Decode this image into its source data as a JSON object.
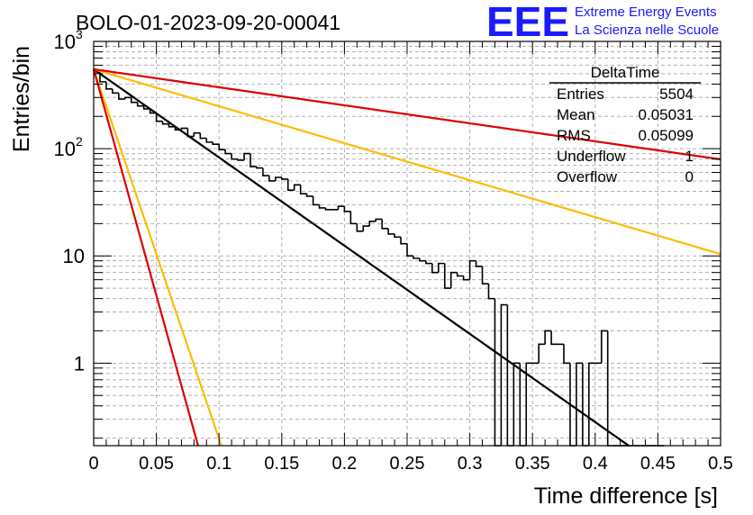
{
  "title": "BOLO-01-2023-09-20-00041",
  "logo": {
    "mark": "EEE",
    "line1": "Extreme Energy Events",
    "line2": "La Scienza nelle Scuole",
    "color": "#1a1aff"
  },
  "stats": {
    "name": "DeltaTime",
    "rows": [
      {
        "label": "Entries",
        "value": "5504"
      },
      {
        "label": "Mean",
        "value": "0.05031"
      },
      {
        "label": "RMS",
        "value": "0.05099"
      },
      {
        "label": "Underflow",
        "value": "1"
      },
      {
        "label": "Overflow",
        "value": "0"
      }
    ]
  },
  "chart_data": {
    "type": "histogram",
    "xlabel": "Time difference [s]",
    "ylabel": "Entries/bin",
    "xlim": [
      0,
      0.5
    ],
    "ylim": [
      0.17,
      1000
    ],
    "y_scale": "log",
    "grid": true,
    "x_ticks": [
      "0",
      "0.05",
      "0.1",
      "0.15",
      "0.2",
      "0.25",
      "0.3",
      "0.35",
      "0.4",
      "0.45",
      "0.5"
    ],
    "y_ticks": [
      {
        "value": 1,
        "label": "1"
      },
      {
        "value": 10,
        "label": "10"
      },
      {
        "value": 100,
        "label": "10",
        "exp": "2"
      },
      {
        "value": 1000,
        "label": "10",
        "exp": "3"
      }
    ],
    "bin_width": 0.005,
    "bin_values": [
      520,
      420,
      360,
      330,
      290,
      300,
      270,
      250,
      235,
      215,
      180,
      170,
      160,
      150,
      155,
      130,
      140,
      125,
      115,
      110,
      98,
      90,
      80,
      78,
      90,
      68,
      66,
      56,
      50,
      54,
      52,
      41,
      46,
      38,
      36,
      30,
      28,
      27,
      27,
      29,
      26,
      20,
      17,
      19,
      21,
      22,
      18,
      16,
      15,
      13,
      10,
      9.5,
      9,
      8.5,
      7,
      8.5,
      5,
      7,
      6.5,
      6,
      9,
      8,
      5.5,
      4,
      0,
      3.5,
      0.17,
      1,
      0.17,
      1,
      1,
      1.5,
      2,
      1.5,
      1.5,
      1,
      0.17,
      1,
      0.17,
      1,
      1,
      2,
      0.17,
      0.17,
      0.17,
      0.17,
      0.17,
      0.17,
      0.17,
      0,
      0
    ],
    "fit_curves": [
      {
        "color": "#000000",
        "y0": 550,
        "tau": 0.0528
      },
      {
        "color": "#ffbb00",
        "y0": 550,
        "tau": 0.126
      },
      {
        "color": "#ffbb00",
        "y0": 550,
        "tau": 0.0126
      },
      {
        "color": "#dd0000",
        "y0": 550,
        "tau": 0.2585
      },
      {
        "color": "#dd0000",
        "y0": 550,
        "tau": 0.0103
      }
    ]
  }
}
